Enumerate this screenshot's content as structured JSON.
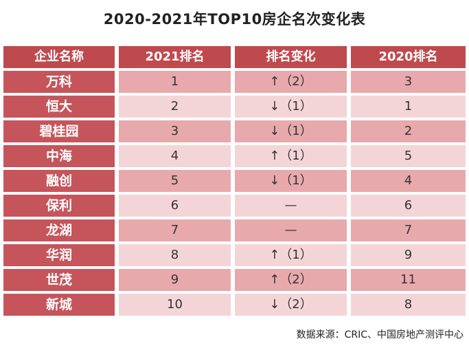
{
  "chart_data": {
    "type": "table",
    "title": "2020-2021年TOP10房企名次变化表",
    "columns": [
      "企业名称",
      "2021排名",
      "排名变化",
      "2020排名"
    ],
    "rows": [
      {
        "company": "万科",
        "rank_2021": "1",
        "change": "↑（2）",
        "rank_2020": "3"
      },
      {
        "company": "恒大",
        "rank_2021": "2",
        "change": "↓（1）",
        "rank_2020": "1"
      },
      {
        "company": "碧桂园",
        "rank_2021": "3",
        "change": "↓（1）",
        "rank_2020": "2"
      },
      {
        "company": "中海",
        "rank_2021": "4",
        "change": "↑（1）",
        "rank_2020": "5"
      },
      {
        "company": "融创",
        "rank_2021": "5",
        "change": "↓（1）",
        "rank_2020": "4"
      },
      {
        "company": "保利",
        "rank_2021": "6",
        "change": "—",
        "rank_2020": "6"
      },
      {
        "company": "龙湖",
        "rank_2021": "7",
        "change": "—",
        "rank_2020": "7"
      },
      {
        "company": "华润",
        "rank_2021": "8",
        "change": "↑（1）",
        "rank_2020": "9"
      },
      {
        "company": "世茂",
        "rank_2021": "9",
        "change": "↑（2）",
        "rank_2020": "11"
      },
      {
        "company": "新城",
        "rank_2021": "10",
        "change": "↓（2）",
        "rank_2020": "8"
      }
    ],
    "source": "数据来源：CRIC、中国房地产测评中心"
  },
  "colors": {
    "header_bg": "#bf4a4e",
    "name_bg": "#c5555b",
    "row_bg_even": "#e8a9ac",
    "row_bg_odd": "#f4d5d7"
  }
}
